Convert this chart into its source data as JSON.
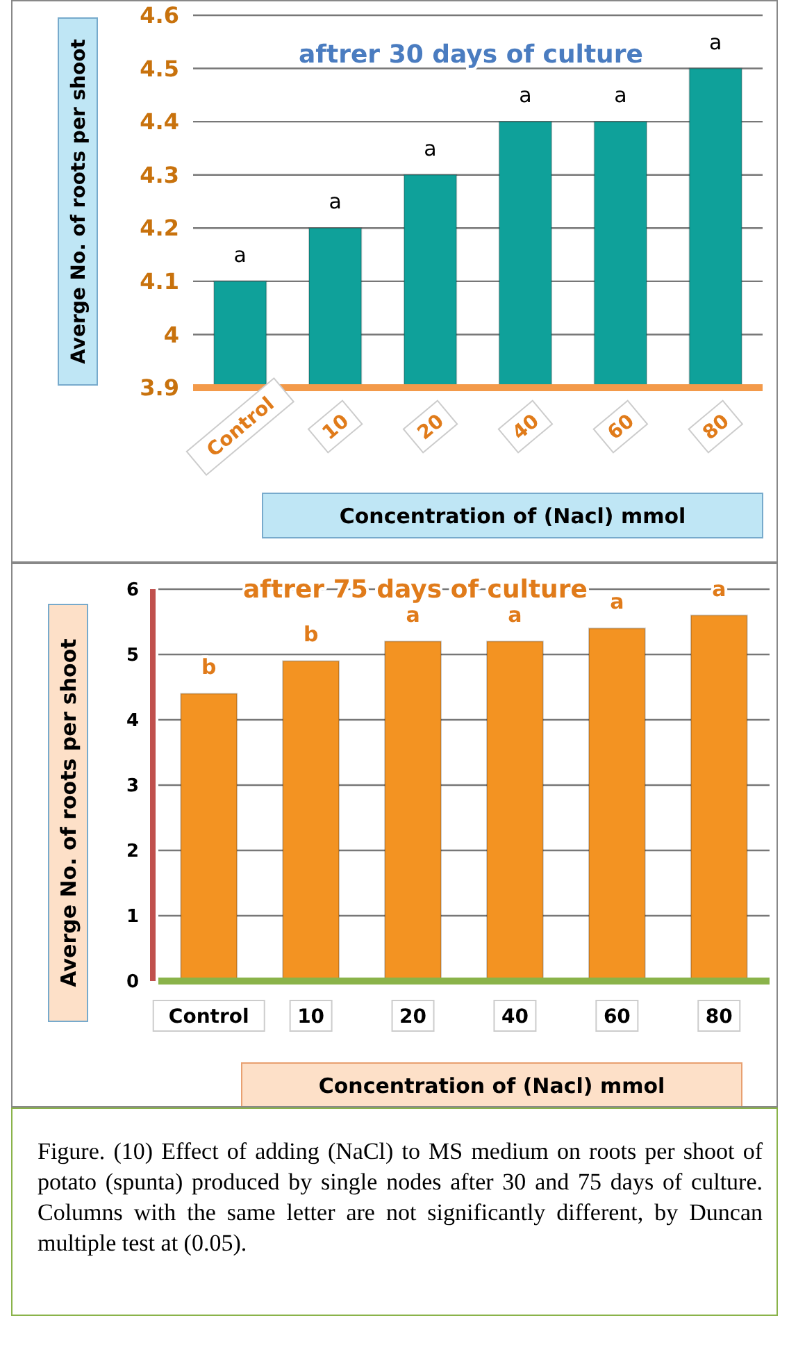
{
  "chart_data": [
    {
      "type": "bar",
      "title": "aftrer 30 days of culture",
      "ylabel": "Averge No. of roots per shoot",
      "xlabel": "Concentration of (Nacl) mmol",
      "categories": [
        "Control",
        "10",
        "20",
        "40",
        "60",
        "80"
      ],
      "values": [
        4.1,
        4.2,
        4.3,
        4.4,
        4.4,
        4.5
      ],
      "color": "#0fa19a",
      "ylim": [
        3.9,
        4.6
      ],
      "yticks": [
        3.9,
        4,
        4.1,
        4.2,
        4.3,
        4.4,
        4.5,
        4.6
      ],
      "grid": "y",
      "annotations": [
        {
          "text": "a",
          "x": "Control",
          "y": 4.1
        },
        {
          "text": "a",
          "x": "10",
          "y": 4.2
        },
        {
          "text": "a",
          "x": "20",
          "y": 4.3
        },
        {
          "text": "a",
          "x": "40",
          "y": 4.4
        },
        {
          "text": "a",
          "x": "60",
          "y": 4.4
        },
        {
          "text": "a",
          "x": "80",
          "y": 4.5
        }
      ]
    },
    {
      "type": "bar",
      "title": "aftrer 75 days of culture",
      "ylabel": "Averge No. of roots per shoot",
      "xlabel": "Concentration of (Nacl) mmol",
      "categories": [
        "Control",
        "10",
        "20",
        "40",
        "60",
        "80"
      ],
      "values": [
        4.4,
        4.9,
        5.2,
        5.2,
        5.4,
        5.6
      ],
      "color": "#f39322",
      "ylim": [
        0,
        6
      ],
      "yticks": [
        0,
        1,
        2,
        3,
        4,
        5,
        6
      ],
      "grid": "y",
      "annotations": [
        {
          "text": "b",
          "x": "Control",
          "y": 4.4
        },
        {
          "text": "b",
          "x": "10",
          "y": 4.9
        },
        {
          "text": "a",
          "x": "20",
          "y": 5.2
        },
        {
          "text": "a",
          "x": "40",
          "y": 5.2
        },
        {
          "text": "a",
          "x": "60",
          "y": 5.4
        },
        {
          "text": "a",
          "x": "80",
          "y": 5.6
        },
        "Figure. (10)  Effect of adding (NaCl)  to MS medium on roots per shoot  of potato (spunta) produced by single nodes after 30 and 75 days of culture. Columns with the same letter are not significantly different, by Duncan multiple test at (0.05)."
      ]
    }
  ]
}
